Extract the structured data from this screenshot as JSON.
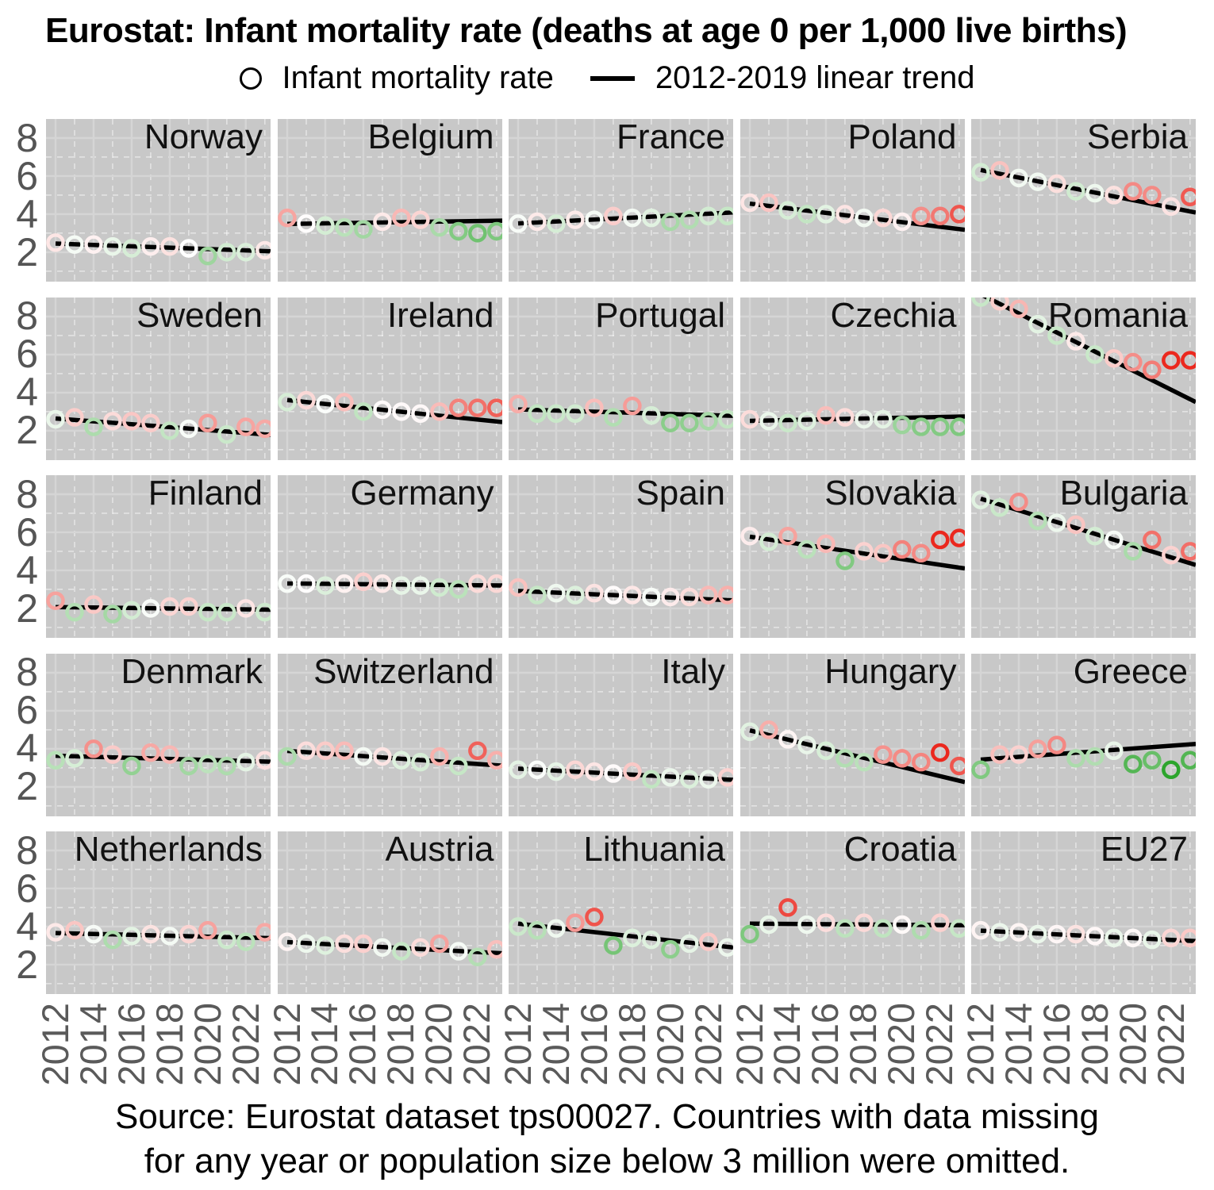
{
  "title": "Eurostat: Infant mortality rate (deaths at age 0 per 1,000 live births)",
  "legend": {
    "point_label": "Infant mortality rate",
    "line_label": "2012-2019 linear trend"
  },
  "footer": {
    "line1": "Source: Eurostat dataset tps00027. Countries with data missing",
    "line2": "for any year or population size below 3 million were omitted."
  },
  "chart_data": {
    "type": "scatter",
    "facet_layout": {
      "rows": 5,
      "cols": 5
    },
    "x": [
      2012,
      2013,
      2014,
      2015,
      2016,
      2017,
      2018,
      2019,
      2020,
      2021,
      2022,
      2023
    ],
    "x_ticks": [
      2012,
      2014,
      2016,
      2018,
      2020,
      2022
    ],
    "y_ticks": [
      2,
      4,
      6,
      8
    ],
    "x_minor": [
      2013,
      2015,
      2017,
      2019,
      2021,
      2023
    ],
    "y_minor": [
      1,
      3,
      5,
      7
    ],
    "xlim": [
      2011.5,
      2023.3
    ],
    "ylim": [
      0.45,
      9.0
    ],
    "trend_fit_years": [
      2012,
      2019
    ],
    "grid": "on",
    "series": [
      {
        "name": "Norway",
        "values": [
          2.5,
          2.4,
          2.4,
          2.3,
          2.2,
          2.3,
          2.3,
          2.2,
          1.8,
          2.0,
          2.0,
          2.1
        ]
      },
      {
        "name": "Belgium",
        "values": [
          3.8,
          3.5,
          3.4,
          3.3,
          3.2,
          3.6,
          3.8,
          3.7,
          3.3,
          3.1,
          3.0,
          3.1
        ]
      },
      {
        "name": "France",
        "values": [
          3.5,
          3.6,
          3.5,
          3.7,
          3.7,
          3.9,
          3.8,
          3.8,
          3.6,
          3.7,
          3.9,
          3.9
        ]
      },
      {
        "name": "Poland",
        "values": [
          4.6,
          4.6,
          4.2,
          4.0,
          4.0,
          4.0,
          3.8,
          3.8,
          3.6,
          3.9,
          3.9,
          4.0
        ]
      },
      {
        "name": "Serbia",
        "values": [
          6.2,
          6.3,
          5.9,
          5.7,
          5.6,
          5.2,
          5.1,
          5.0,
          5.2,
          5.0,
          4.4,
          4.9
        ]
      },
      {
        "name": "Sweden",
        "values": [
          2.6,
          2.7,
          2.2,
          2.5,
          2.5,
          2.4,
          2.0,
          2.1,
          2.4,
          1.8,
          2.2,
          2.1
        ]
      },
      {
        "name": "Ireland",
        "values": [
          3.5,
          3.6,
          3.4,
          3.5,
          3.0,
          3.1,
          3.0,
          2.9,
          3.0,
          3.2,
          3.2,
          3.2
        ]
      },
      {
        "name": "Portugal",
        "values": [
          3.4,
          2.9,
          2.9,
          2.9,
          3.2,
          2.7,
          3.3,
          2.8,
          2.4,
          2.4,
          2.5,
          2.6
        ]
      },
      {
        "name": "Czechia",
        "values": [
          2.6,
          2.5,
          2.4,
          2.5,
          2.8,
          2.7,
          2.6,
          2.6,
          2.3,
          2.2,
          2.2,
          2.2
        ]
      },
      {
        "name": "Romania",
        "values": [
          9.0,
          8.8,
          8.4,
          7.6,
          7.0,
          6.7,
          6.0,
          5.8,
          5.6,
          5.2,
          5.7,
          5.7
        ]
      },
      {
        "name": "Finland",
        "values": [
          2.4,
          1.8,
          2.2,
          1.7,
          1.9,
          2.0,
          2.1,
          2.1,
          1.8,
          1.8,
          2.0,
          1.8
        ]
      },
      {
        "name": "Germany",
        "values": [
          3.3,
          3.3,
          3.2,
          3.3,
          3.4,
          3.3,
          3.2,
          3.2,
          3.1,
          3.0,
          3.3,
          3.3
        ]
      },
      {
        "name": "Spain",
        "values": [
          3.1,
          2.7,
          2.8,
          2.7,
          2.8,
          2.7,
          2.7,
          2.6,
          2.6,
          2.6,
          2.7,
          2.7
        ]
      },
      {
        "name": "Slovakia",
        "values": [
          5.8,
          5.5,
          5.8,
          5.1,
          5.4,
          4.5,
          5.0,
          4.9,
          5.1,
          4.9,
          5.6,
          5.7
        ]
      },
      {
        "name": "Bulgaria",
        "values": [
          7.7,
          7.3,
          7.6,
          6.6,
          6.5,
          6.4,
          5.8,
          5.6,
          5.0,
          5.6,
          4.8,
          5.0
        ]
      },
      {
        "name": "Denmark",
        "values": [
          3.4,
          3.5,
          4.0,
          3.7,
          3.1,
          3.8,
          3.7,
          3.1,
          3.2,
          3.1,
          3.3,
          3.4
        ]
      },
      {
        "name": "Switzerland",
        "values": [
          3.6,
          3.9,
          3.9,
          3.9,
          3.6,
          3.6,
          3.4,
          3.3,
          3.6,
          3.1,
          3.9,
          3.4
        ]
      },
      {
        "name": "Italy",
        "values": [
          2.9,
          2.9,
          2.8,
          2.9,
          2.8,
          2.7,
          2.8,
          2.4,
          2.5,
          2.4,
          2.4,
          2.5
        ]
      },
      {
        "name": "Hungary",
        "values": [
          4.9,
          5.0,
          4.5,
          4.2,
          3.9,
          3.5,
          3.3,
          3.7,
          3.5,
          3.3,
          3.8,
          3.1
        ]
      },
      {
        "name": "Greece",
        "values": [
          2.9,
          3.7,
          3.7,
          4.0,
          4.2,
          3.5,
          3.6,
          3.9,
          3.2,
          3.4,
          2.9,
          3.4
        ]
      },
      {
        "name": "Netherlands",
        "values": [
          3.7,
          3.8,
          3.6,
          3.3,
          3.5,
          3.6,
          3.5,
          3.6,
          3.8,
          3.3,
          3.2,
          3.7
        ]
      },
      {
        "name": "Austria",
        "values": [
          3.2,
          3.1,
          3.0,
          3.1,
          3.1,
          2.9,
          2.7,
          2.9,
          3.1,
          2.7,
          2.4,
          2.8
        ]
      },
      {
        "name": "Lithuania",
        "values": [
          4.0,
          3.8,
          3.9,
          4.2,
          4.5,
          3.0,
          3.4,
          3.3,
          2.8,
          3.1,
          3.2,
          2.9
        ]
      },
      {
        "name": "Croatia",
        "values": [
          3.6,
          4.1,
          5.0,
          4.1,
          4.2,
          3.9,
          4.2,
          3.9,
          4.1,
          3.8,
          4.2,
          3.9
        ]
      },
      {
        "name": "EU27",
        "values": [
          3.8,
          3.7,
          3.7,
          3.6,
          3.6,
          3.6,
          3.5,
          3.4,
          3.4,
          3.3,
          3.4,
          3.4
        ]
      }
    ],
    "colors": {
      "panel_bg": "#c8c8c8",
      "grid_major": "#d5d5d5",
      "grid_minor": "#ffffff",
      "trend_line": "#000000",
      "point_above_trend": "#eb281e",
      "point_on_trend": "#ffffff",
      "point_below_trend": "#2da52d",
      "axis_text": "#5a5a5a",
      "facet_label_text": "#111111"
    }
  }
}
